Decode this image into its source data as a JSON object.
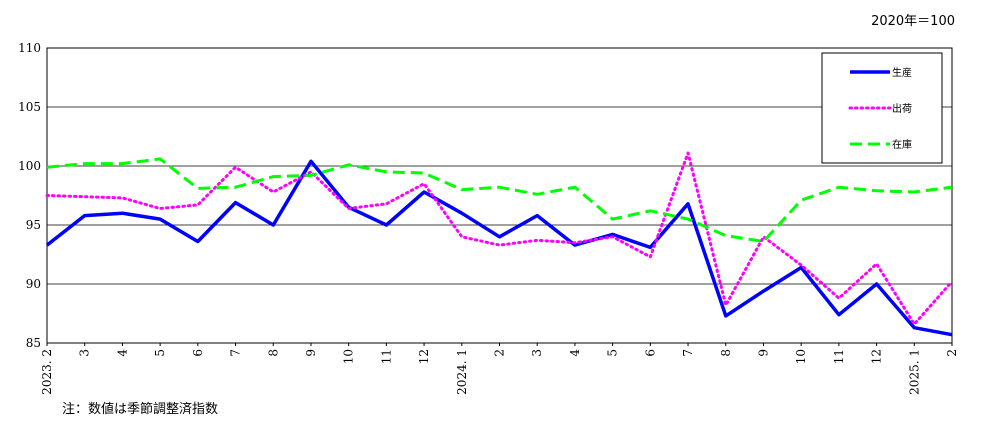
{
  "chart_data": {
    "type": "line",
    "unit_label": "2020年＝100",
    "note": "注：数値は季節調整済指数",
    "x_labels": [
      "2023. 2",
      "3",
      "4",
      "5",
      "6",
      "7",
      "8",
      "9",
      "10",
      "11",
      "12",
      "2024. 1",
      "2",
      "3",
      "4",
      "5",
      "6",
      "7",
      "8",
      "9",
      "10",
      "11",
      "12",
      "2025. 1",
      "2"
    ],
    "ylim": [
      85,
      110
    ],
    "y_ticks": [
      85,
      90,
      95,
      100,
      105,
      110
    ],
    "grid": true,
    "legend_position": "top-right",
    "series": [
      {
        "name": "生産",
        "color": "#0000ff",
        "style": "solid",
        "values": [
          93.3,
          95.8,
          96.0,
          95.5,
          93.6,
          96.9,
          95.0,
          100.4,
          96.5,
          95.0,
          97.8,
          96.0,
          94.0,
          95.8,
          93.3,
          94.2,
          93.1,
          96.8,
          87.3,
          89.4,
          91.4,
          87.4,
          90.0,
          86.3,
          85.7
        ]
      },
      {
        "name": "出荷",
        "color": "#ff00ff",
        "style": "dotted",
        "values": [
          97.5,
          97.4,
          97.3,
          96.4,
          96.7,
          99.9,
          97.8,
          99.5,
          96.4,
          96.8,
          98.5,
          94.0,
          93.3,
          93.7,
          93.5,
          94.0,
          92.3,
          101.1,
          88.2,
          94.0,
          91.6,
          88.8,
          91.7,
          86.6,
          90.2
        ]
      },
      {
        "name": "在庫",
        "color": "#00ff00",
        "style": "dashed",
        "values": [
          99.9,
          100.2,
          100.2,
          100.6,
          98.1,
          98.2,
          99.1,
          99.2,
          100.1,
          99.5,
          99.4,
          98.0,
          98.2,
          97.6,
          98.2,
          95.5,
          96.2,
          95.5,
          94.1,
          93.6,
          97.1,
          98.2,
          97.9,
          97.8,
          98.2
        ]
      }
    ]
  }
}
